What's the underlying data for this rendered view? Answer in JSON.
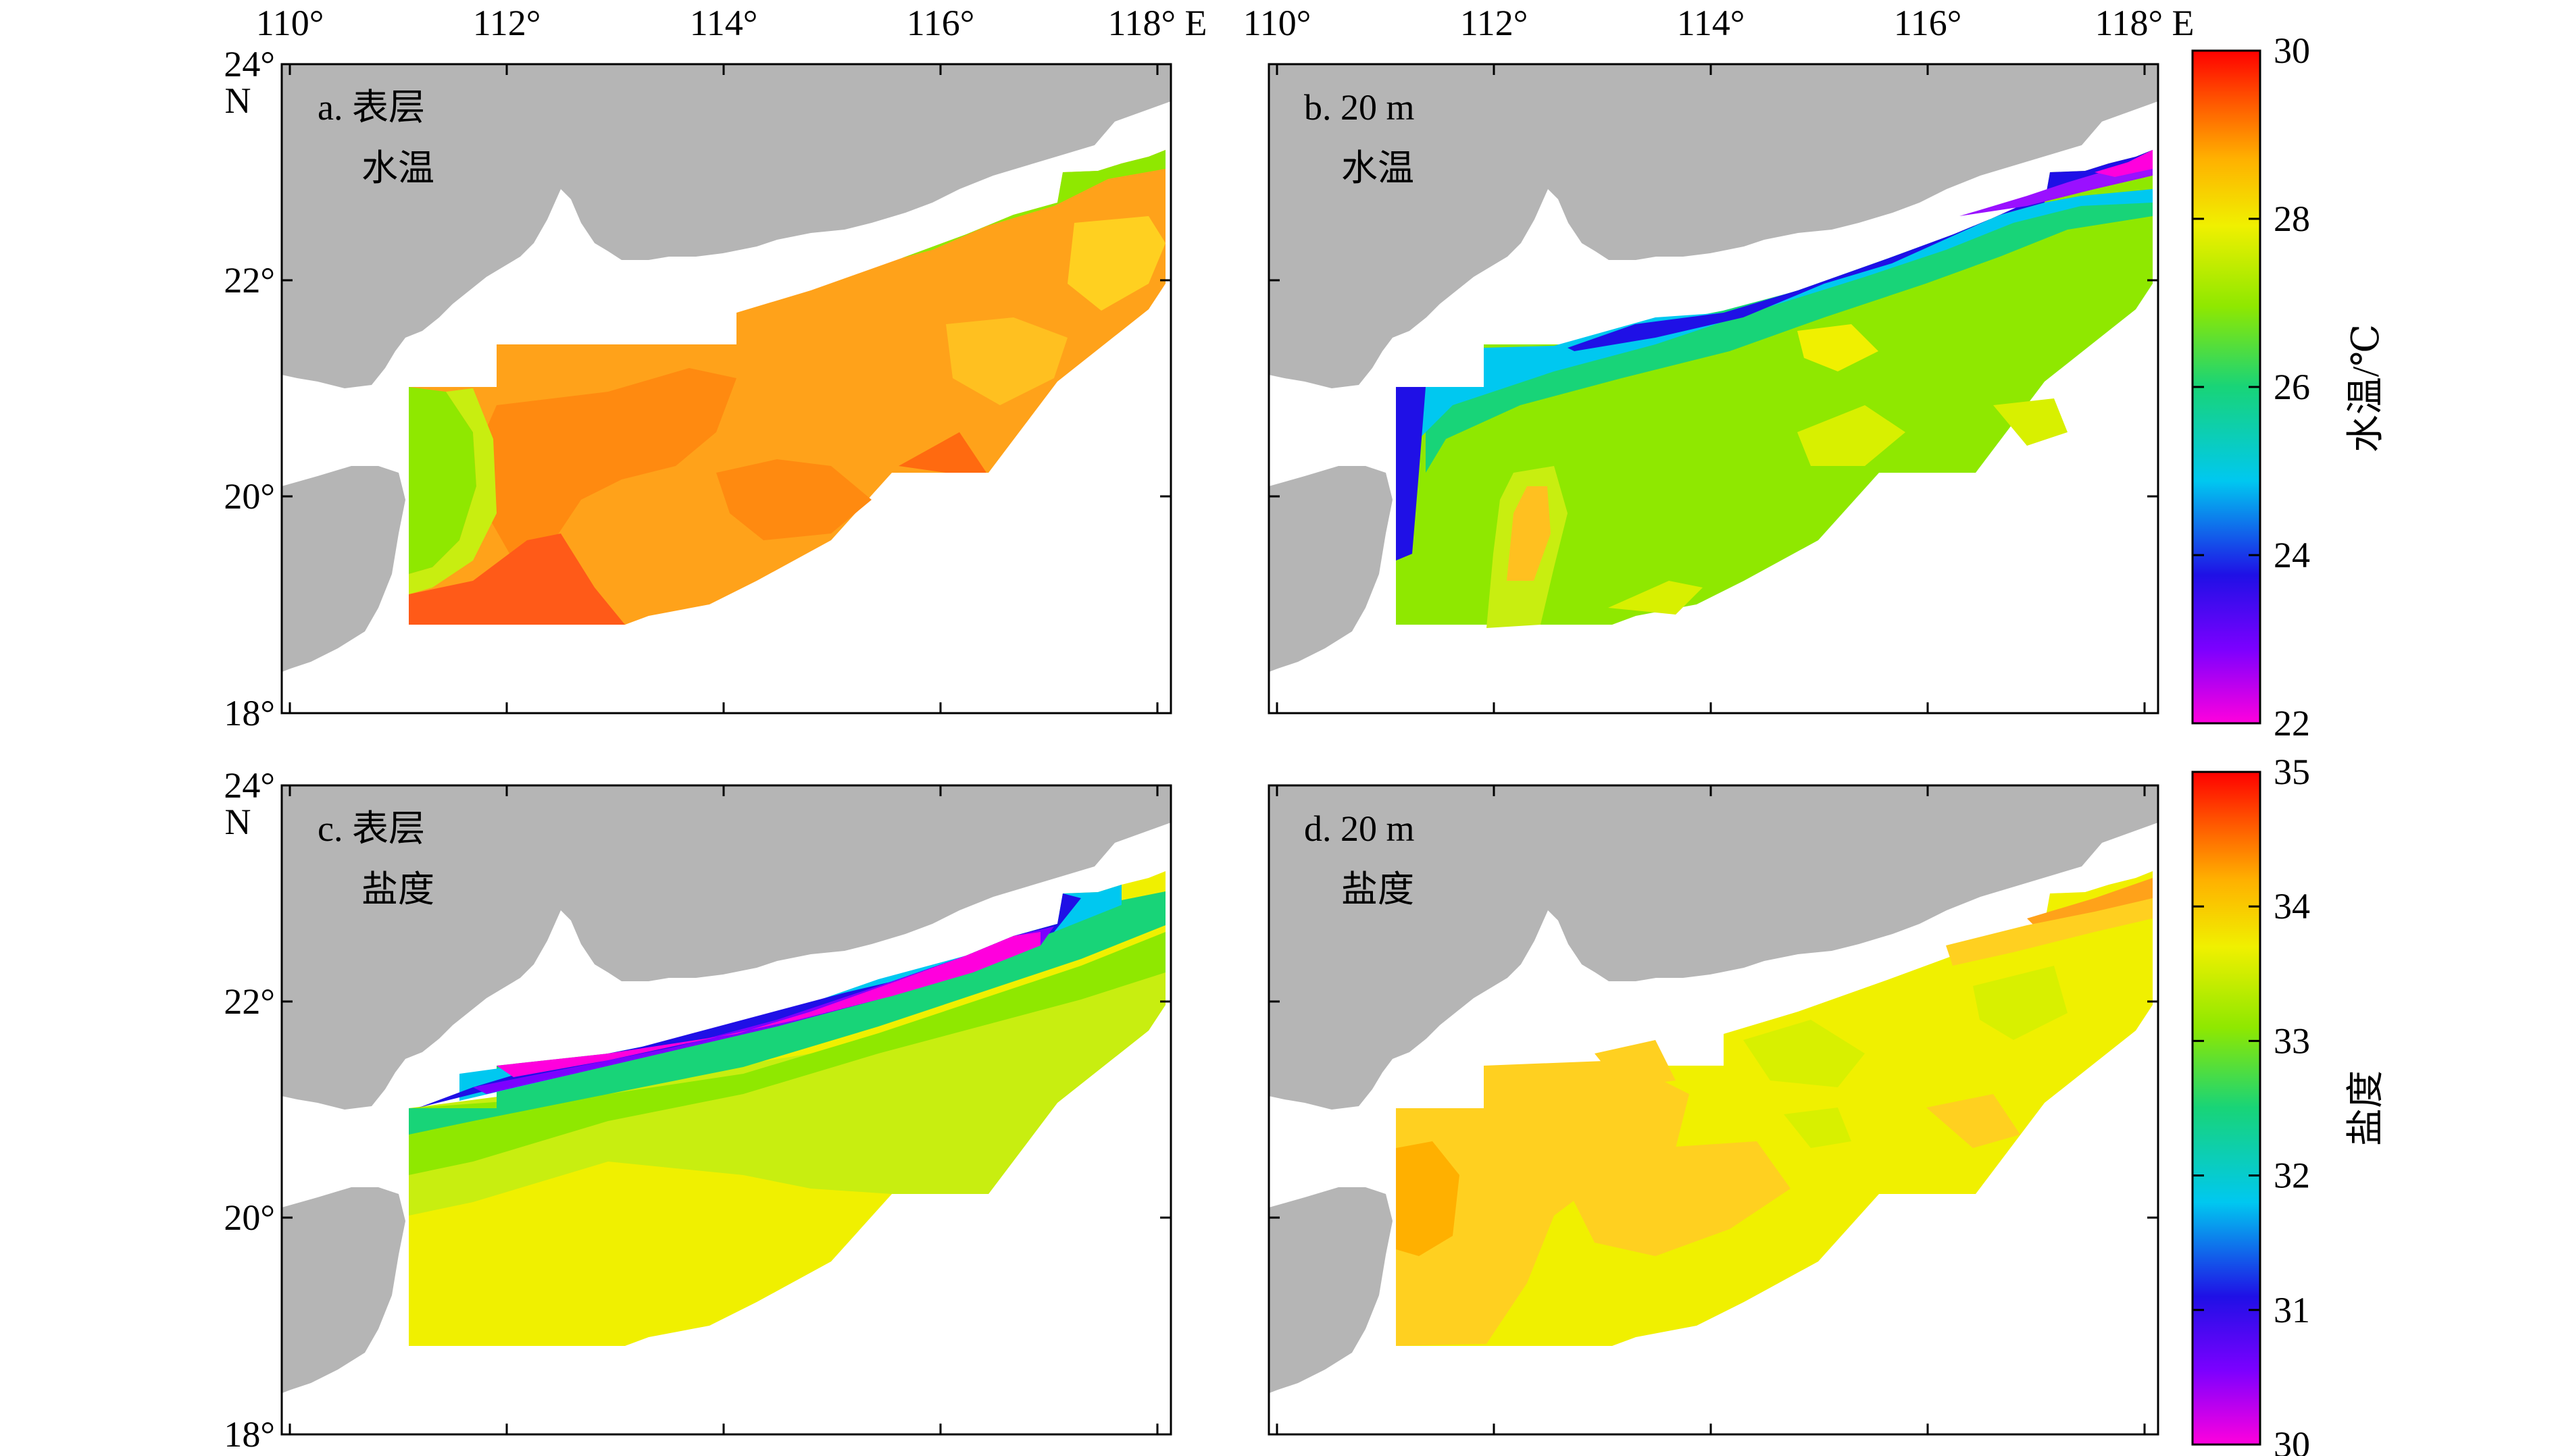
{
  "figure": {
    "lon_ticks": [
      "110°",
      "112°",
      "114°",
      "116°",
      "118° E"
    ],
    "lat_ticks": [
      "18°",
      "20°",
      "22°",
      "24°"
    ],
    "lat_unit": "N",
    "land_color": "#b5b5b5",
    "panels": [
      {
        "id": "a",
        "label": "a. 表层",
        "variable": "水温",
        "field": "sst_surface"
      },
      {
        "id": "b",
        "label": "b. 20 m",
        "variable": "水温",
        "field": "sst_20m"
      },
      {
        "id": "c",
        "label": "c. 表层",
        "variable": "盐度",
        "field": "sss_surface"
      },
      {
        "id": "d",
        "label": "d. 20 m",
        "variable": "盐度",
        "field": "sss_20m"
      }
    ],
    "colorbars": [
      {
        "id": "temperature",
        "title": "水温/℃",
        "ticks": [
          "30",
          "28",
          "26",
          "24",
          "22"
        ],
        "range": [
          22,
          30
        ]
      },
      {
        "id": "salinity",
        "title": "盐度",
        "ticks": [
          "35",
          "34",
          "33",
          "32",
          "31",
          "30"
        ],
        "range": [
          30,
          35
        ]
      }
    ],
    "colormap": [
      "#ff00dd",
      "#7c00ff",
      "#1f10e6",
      "#00c8f0",
      "#18d478",
      "#8fe800",
      "#f0f000",
      "#ffb000",
      "#ff5000",
      "#ff0000"
    ],
    "map_extent": {
      "lon": [
        110,
        118
      ],
      "lat": [
        18,
        24
      ]
    }
  }
}
